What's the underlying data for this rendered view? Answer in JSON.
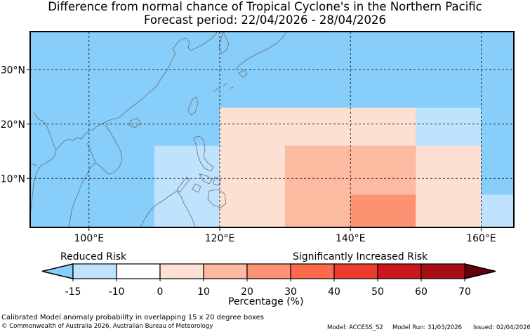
{
  "title": "Difference from normal chance of Tropical Cyclone's in the Northern Pacific",
  "subtitle": "Forecast period: 22/04/2026 - 28/04/2026",
  "map": {
    "lon_range": [
      91,
      165
    ],
    "lat_range": [
      1,
      37
    ],
    "background_color": "#87cefa",
    "lon_ticks": [
      "100°E",
      "120°E",
      "140°E",
      "160°E"
    ],
    "lat_ticks": [
      "10°N",
      "20°N",
      "30°N"
    ],
    "cells": [
      {
        "lon": [
          110,
          120
        ],
        "lat": [
          1,
          16
        ],
        "category": -15
      },
      {
        "lon": [
          120,
          130
        ],
        "lat": [
          1,
          16
        ],
        "category": 0
      },
      {
        "lon": [
          120,
          150
        ],
        "lat": [
          16,
          23
        ],
        "category": 0
      },
      {
        "lon": [
          150,
          160
        ],
        "lat": [
          16,
          23
        ],
        "category": -15
      },
      {
        "lon": [
          130,
          150
        ],
        "lat": [
          7,
          16
        ],
        "category": 10
      },
      {
        "lon": [
          130,
          140
        ],
        "lat": [
          1,
          7
        ],
        "category": 10
      },
      {
        "lon": [
          140,
          150
        ],
        "lat": [
          1,
          7
        ],
        "category": 20
      },
      {
        "lon": [
          150,
          160
        ],
        "lat": [
          1,
          16
        ],
        "category": 0
      },
      {
        "lon": [
          160,
          170
        ],
        "lat": [
          1,
          7
        ],
        "category": -15
      }
    ]
  },
  "colorbar": {
    "left_label": "Reduced Risk",
    "right_label": "Significantly Increased Risk",
    "tick_labels": [
      "-15",
      "-10",
      "0",
      "10",
      "20",
      "30",
      "40",
      "50",
      "60",
      "70"
    ],
    "under_color": "#87cefa",
    "colors": [
      "#bfe3fd",
      "#ffffff",
      "#fde0d2",
      "#fcbba1",
      "#fc9272",
      "#fb6a4a",
      "#ef3b2c",
      "#cb181d",
      "#a50f15"
    ],
    "over_color": "#67000d",
    "xlabel": "Percentage (%)"
  },
  "footer": {
    "caption": "Calibrated Model anomaly probability in overlapping 15 x 20 degree boxes",
    "copyright": "© Commonwealth of Australia 2026, Australian Bureau of Meteorology",
    "model": "Model: ACCESS_S2",
    "model_run": "Model Run: 31/03/2026",
    "issued": "Issued: 02/04/2026"
  }
}
